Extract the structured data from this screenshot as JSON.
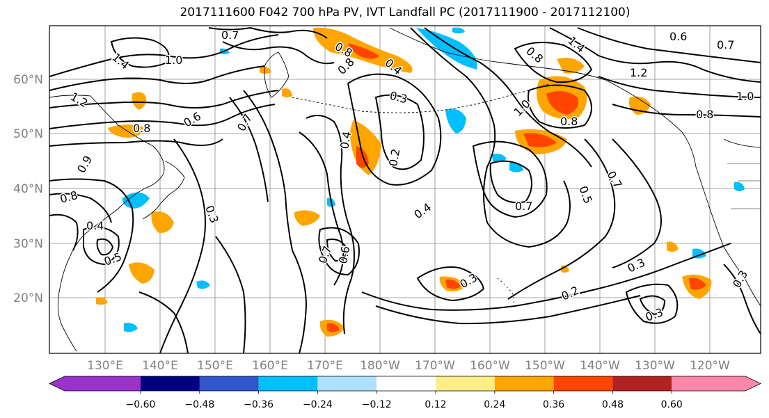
{
  "title": "2017111600 F042 700 hPa PV, IVT Landfall PC (2017111900 - 2017112100)",
  "lat_labels": [
    "60°N",
    "50°N",
    "40°N",
    "30°N",
    "20°N"
  ],
  "lon_labels": [
    "130°E",
    "140°E",
    "150°E",
    "160°E",
    "170°E",
    "180°W",
    "170°W",
    "160°W",
    "150°W",
    "140°W",
    "130°W",
    "120°W"
  ],
  "colorbar": {
    "colors": [
      "#9933cc",
      "#000080",
      "#3355cc",
      "#00bfff",
      "#b0e0ff",
      "#ffffff",
      "#ffee88",
      "#ffa500",
      "#ff4500",
      "#b22222",
      "#ff88aa"
    ],
    "tick_labels": [
      "−0.60",
      "−0.48",
      "−0.36",
      "−0.24",
      "−0.12",
      "0.12",
      "0.24",
      "0.36",
      "0.48",
      "0.60"
    ]
  },
  "contour_labels": [
    "0.7",
    "1.4",
    "1.0",
    "1.2",
    "0.8",
    "0.6",
    "0.7",
    "0.8",
    "0.4",
    "0.8",
    "0.3",
    "0.2",
    "0.4",
    "0.8",
    "1.0",
    "0.8",
    "1.4",
    "1.2",
    "0.6",
    "0.7",
    "1.0",
    "0.8",
    "0.7",
    "0.5",
    "0.7",
    "0.4",
    "0.9",
    "0.8",
    "0.4",
    "0.5",
    "0.3",
    "0.7",
    "0.6",
    "0.3",
    "0.2",
    "0.3",
    "0.3",
    "0.3"
  ]
}
